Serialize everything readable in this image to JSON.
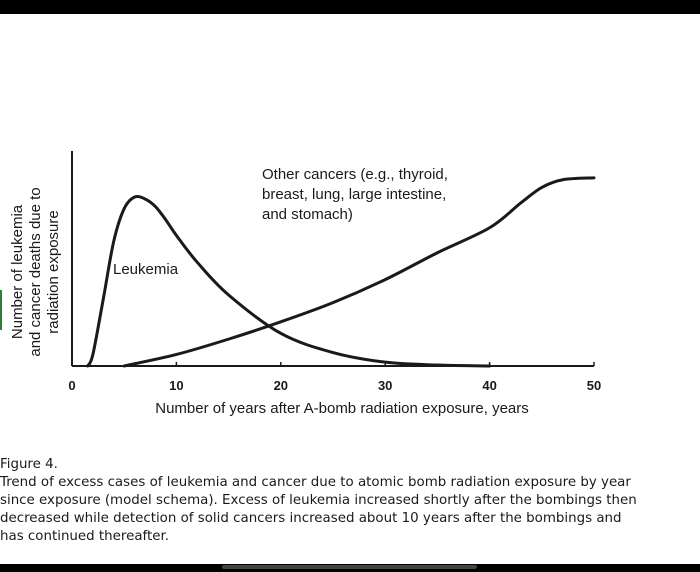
{
  "chart_data": {
    "type": "line",
    "xlabel": "Number of years after A-bomb radiation exposure, years",
    "ylabel": [
      "Number of leukemia",
      "and cancer deaths due to",
      "radiation exposure"
    ],
    "xlim": [
      0,
      50
    ],
    "ylim": [
      0,
      100
    ],
    "x_ticks": [
      0,
      10,
      20,
      30,
      40,
      50
    ],
    "x_tick_labels": [
      "0",
      "10",
      "20",
      "30",
      "40",
      "50"
    ],
    "grid": false,
    "legend": "none",
    "series": [
      {
        "name": "Leukemia",
        "x": [
          1.5,
          2,
          3,
          4,
          5,
          6,
          7,
          8,
          9,
          10,
          12,
          15,
          20,
          25,
          30,
          35,
          40
        ],
        "y": [
          0,
          6,
          35,
          65,
          82,
          88,
          87,
          83,
          76,
          68,
          54,
          37,
          17,
          7,
          2,
          0.5,
          0
        ]
      },
      {
        "name": "Other cancers (e.g., thyroid, breast, lung, large intestine, and stomach)",
        "x": [
          5,
          10,
          15,
          20,
          25,
          30,
          35,
          40,
          43,
          45,
          47,
          50
        ],
        "y": [
          0,
          6,
          14,
          23,
          33,
          45,
          59,
          72,
          85,
          93,
          97,
          98
        ]
      }
    ],
    "annotations": [
      {
        "series": "Leukemia",
        "lines": [
          "Leukemia"
        ]
      },
      {
        "series": "Other cancers",
        "lines": [
          "Other cancers (e.g., thyroid,",
          "breast, lung, large intestine,",
          "and stomach)"
        ]
      }
    ]
  },
  "caption": {
    "title": "Figure 4.",
    "body": "Trend of excess cases of leukemia and cancer due to atomic bomb radiation exposure by year since exposure (model schema). Excess of leukemia increased shortly after the bombings then decreased while detection of solid cancers increased about 10 years after the bombings and has continued thereafter."
  },
  "colors": {
    "line": "#1a1a1a",
    "background": "#ffffff",
    "frame": "#000000"
  }
}
